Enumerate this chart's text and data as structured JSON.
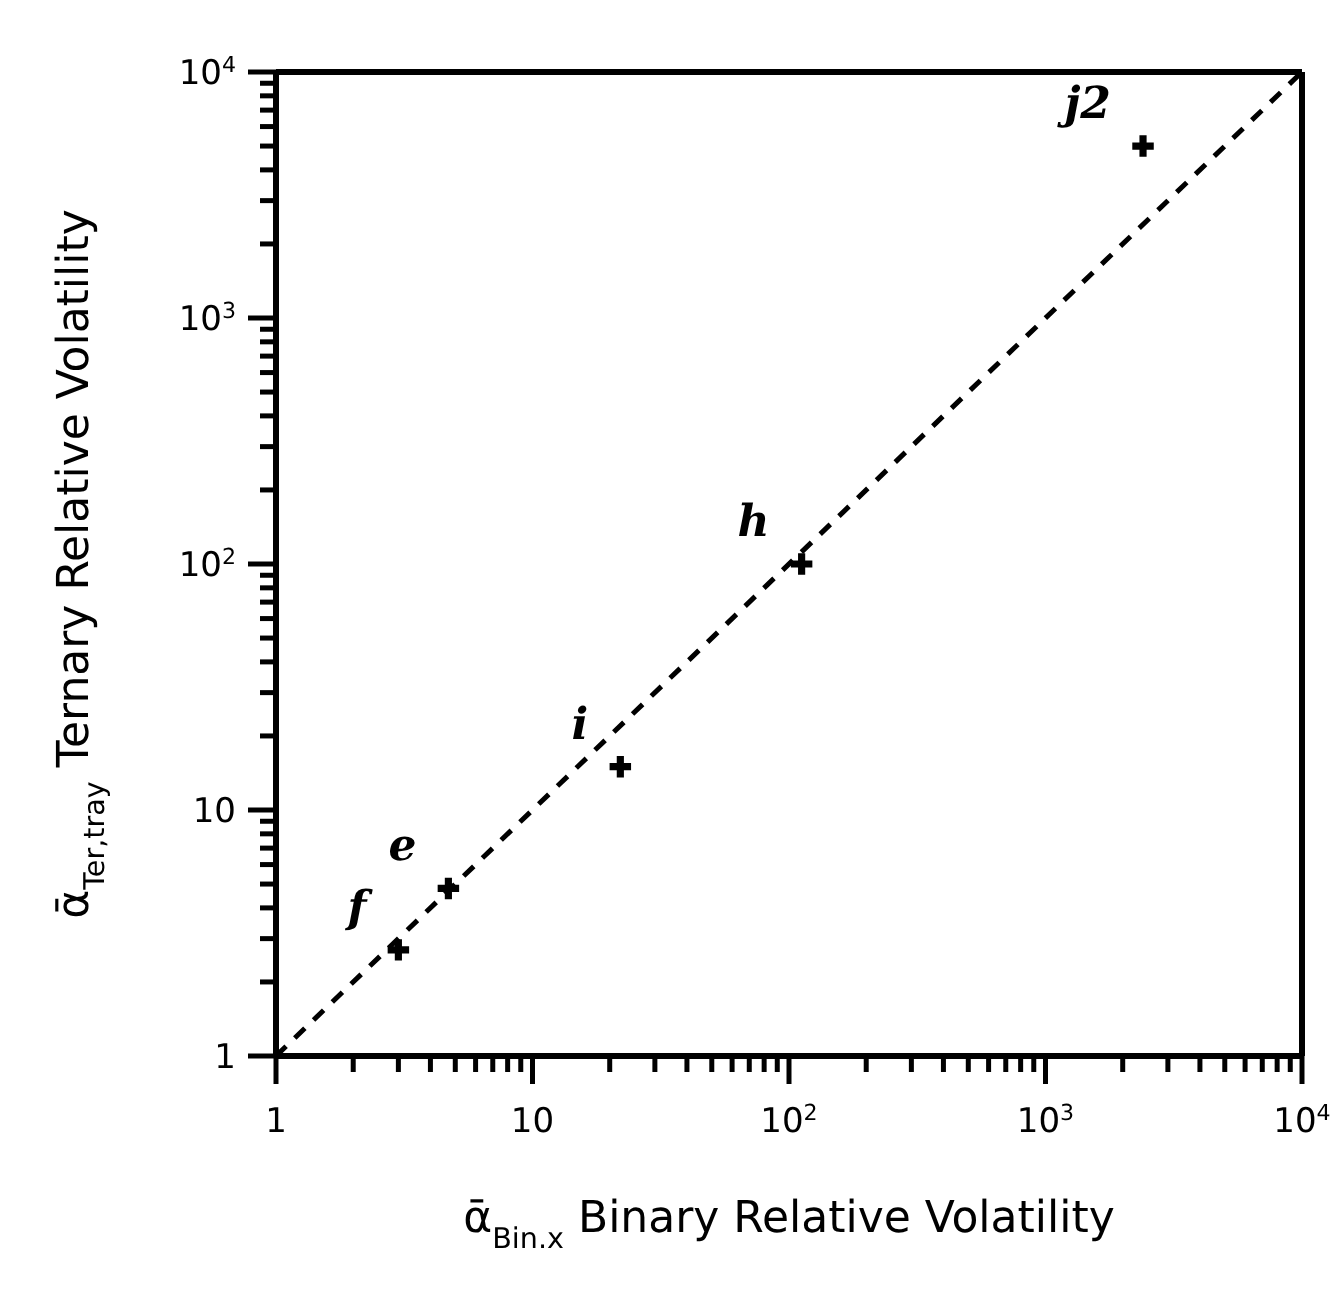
{
  "chart_data": {
    "type": "scatter",
    "xlabel": "ᾱ$_{Bin.x}$  Binary Relative Volatility",
    "ylabel": "ᾱ$_{Ter,tray}$  Ternary Relative Volatility",
    "log": "xy",
    "xlim": [
      1,
      10000
    ],
    "ylim": [
      1,
      10000
    ],
    "xticks": [
      1,
      {
        "value": 2,
        "label": null
      },
      {
        "value": 3,
        "label": null
      },
      {
        "value": 4,
        "label": null
      },
      {
        "value": 5,
        "label": null
      },
      {
        "value": 6,
        "label": null
      },
      {
        "value": 7,
        "label": null
      },
      {
        "value": 8,
        "label": null
      },
      {
        "value": 9,
        "label": null
      },
      10,
      {
        "value": 20,
        "label": null
      },
      {
        "value": 30,
        "label": null
      },
      {
        "value": 40,
        "label": null
      },
      {
        "value": 50,
        "label": null
      },
      {
        "value": 60,
        "label": null
      },
      {
        "value": 70,
        "label": null
      },
      {
        "value": 80,
        "label": null
      },
      {
        "value": 90,
        "label": null
      },
      {
        "value": 100,
        "label": "10$^{2}$"
      },
      {
        "value": 200,
        "label": null
      },
      {
        "value": 300,
        "label": null
      },
      {
        "value": 400,
        "label": null
      },
      {
        "value": 500,
        "label": null
      },
      {
        "value": 600,
        "label": null
      },
      {
        "value": 700,
        "label": null
      },
      {
        "value": 800,
        "label": null
      },
      {
        "value": 900,
        "label": null
      },
      {
        "value": 1000,
        "label": "10$^{3}$"
      },
      {
        "value": 2000,
        "label": null
      },
      {
        "value": 3000,
        "label": null
      },
      {
        "value": 4000,
        "label": null
      },
      {
        "value": 5000,
        "label": null
      },
      {
        "value": 6000,
        "label": null
      },
      {
        "value": 7000,
        "label": null
      },
      {
        "value": 8000,
        "label": null
      },
      {
        "value": 9000,
        "label": null
      },
      {
        "value": 10000,
        "label": "10$^{4}$"
      }
    ],
    "yticks": [
      1,
      {
        "value": 2,
        "label": null
      },
      {
        "value": 3,
        "label": null
      },
      {
        "value": 4,
        "label": null
      },
      {
        "value": 5,
        "label": null
      },
      {
        "value": 6,
        "label": null
      },
      {
        "value": 7,
        "label": null
      },
      {
        "value": 8,
        "label": null
      },
      {
        "value": 9,
        "label": null
      },
      10,
      {
        "value": 20,
        "label": null
      },
      {
        "value": 30,
        "label": null
      },
      {
        "value": 40,
        "label": null
      },
      {
        "value": 50,
        "label": null
      },
      {
        "value": 60,
        "label": null
      },
      {
        "value": 70,
        "label": null
      },
      {
        "value": 80,
        "label": null
      },
      {
        "value": 90,
        "label": null
      },
      {
        "value": 100,
        "label": "10$^{2}$"
      },
      {
        "value": 200,
        "label": null
      },
      {
        "value": 300,
        "label": null
      },
      {
        "value": 400,
        "label": null
      },
      {
        "value": 500,
        "label": null
      },
      {
        "value": 600,
        "label": null
      },
      {
        "value": 700,
        "label": null
      },
      {
        "value": 800,
        "label": null
      },
      {
        "value": 900,
        "label": null
      },
      {
        "value": 1000,
        "label": "10$^{3}$"
      },
      {
        "value": 2000,
        "label": null
      },
      {
        "value": 3000,
        "label": null
      },
      {
        "value": 4000,
        "label": null
      },
      {
        "value": 5000,
        "label": null
      },
      {
        "value": 6000,
        "label": null
      },
      {
        "value": 7000,
        "label": null
      },
      {
        "value": 8000,
        "label": null
      },
      {
        "value": 9000,
        "label": null
      },
      {
        "value": 10000,
        "label": "10$^{4}$"
      }
    ],
    "grid": false,
    "legend": false,
    "series": [
      {
        "type": "scatter",
        "color": "#000000",
        "marker": "cross",
        "x": [
          3.0,
          4.7,
          22,
          112,
          2400
        ],
        "values": [
          2.7,
          4.8,
          15,
          100,
          5000
        ]
      },
      {
        "type": "line",
        "color": "#000000",
        "line_style": "dashed",
        "marker": "none",
        "x": [
          1,
          10000
        ],
        "values": [
          1,
          10000
        ]
      }
    ],
    "annotations": [
      {
        "text": "f",
        "x": 3.0,
        "y": 2.7
      },
      {
        "text": "e",
        "x": 4.7,
        "y": 4.8
      },
      {
        "text": "i",
        "x": 22,
        "y": 15
      },
      {
        "text": "h",
        "x": 112,
        "y": 100
      },
      {
        "text": "j2",
        "x": 2400,
        "y": 5000
      }
    ]
  }
}
